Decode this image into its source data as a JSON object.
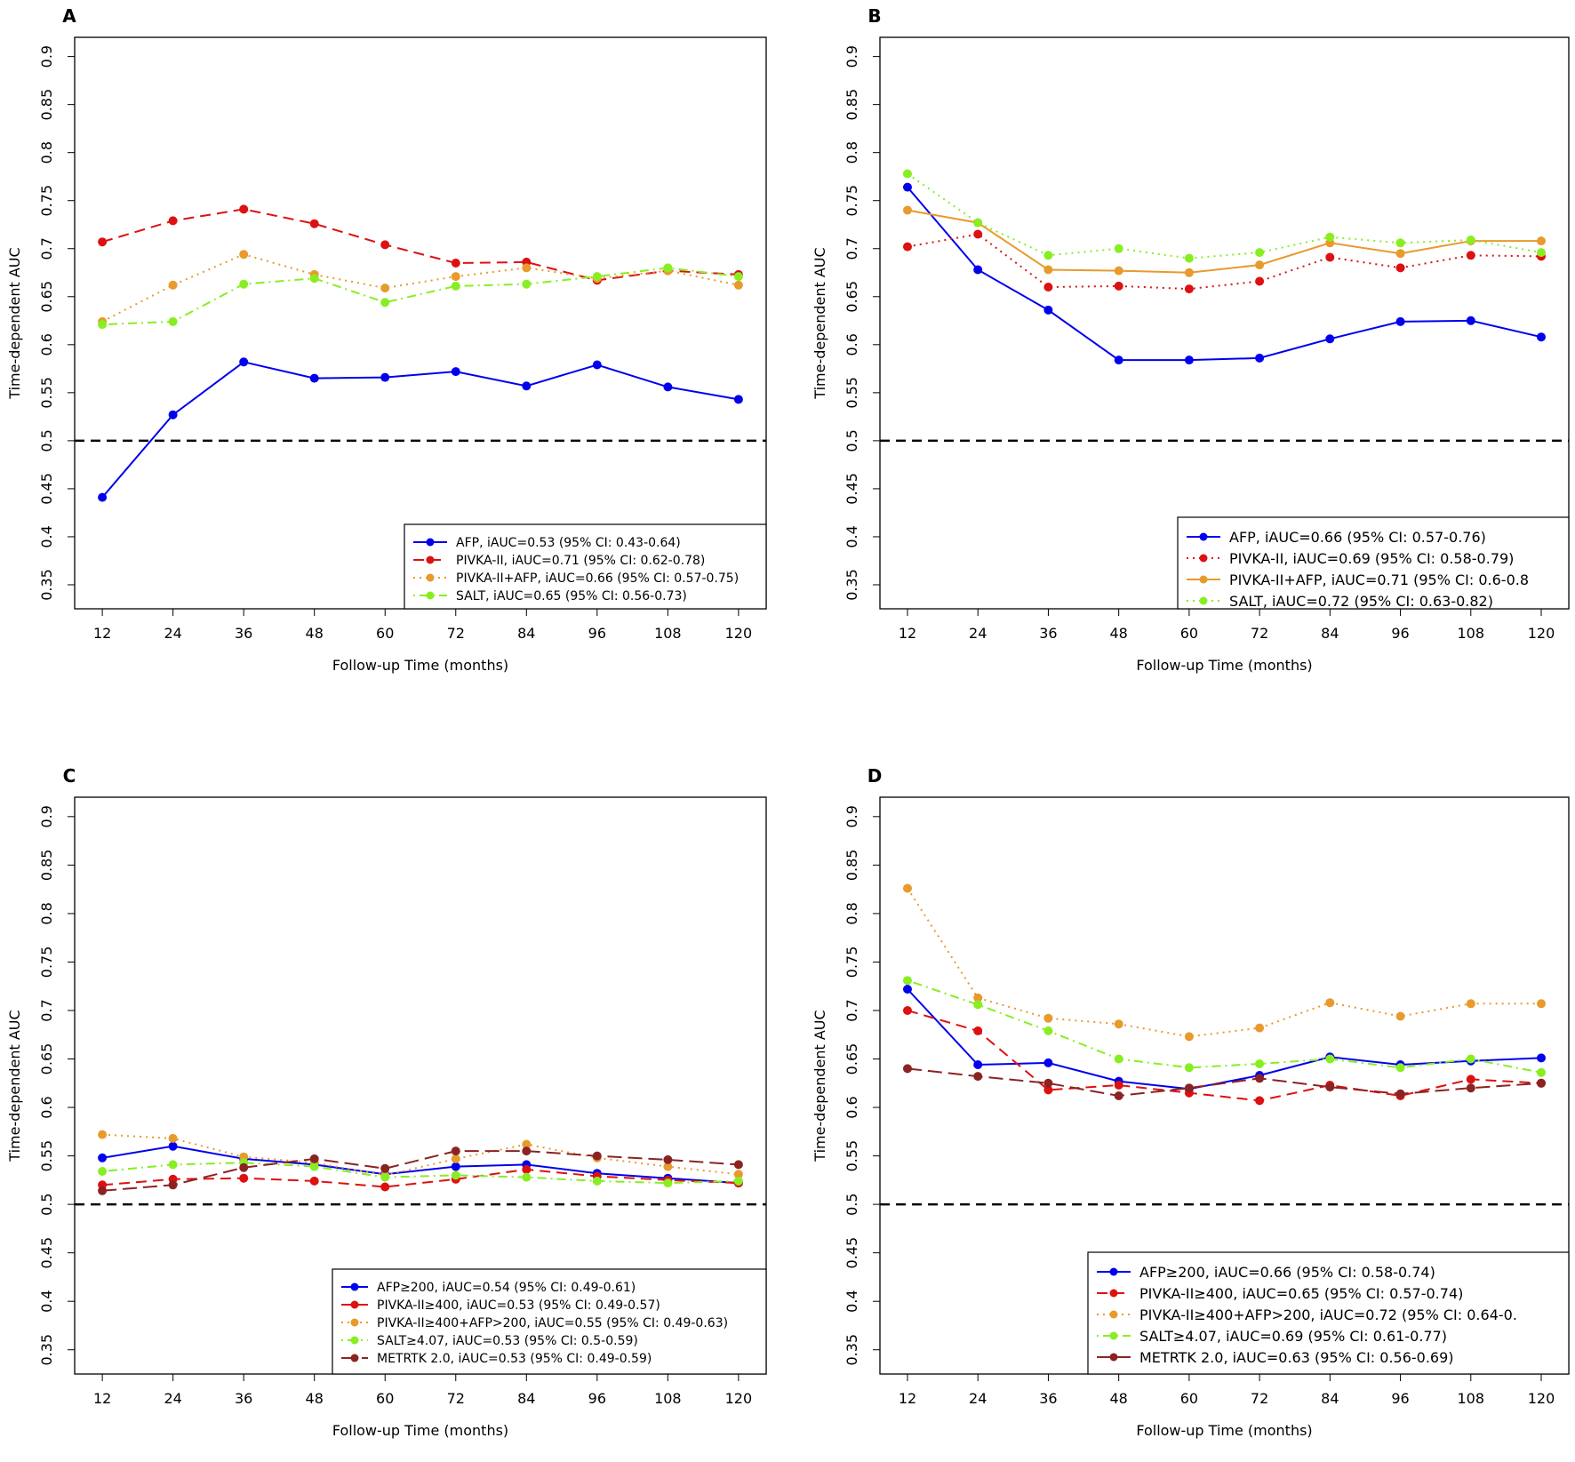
{
  "chart_data": [
    {
      "panel": "A",
      "type": "line",
      "title": "",
      "xlabel": "Follow-up Time (months)",
      "ylabel": "Time-dependent AUC",
      "x": [
        12,
        24,
        36,
        48,
        60,
        72,
        84,
        96,
        108,
        120
      ],
      "x_tick_labels": [
        "12",
        "24",
        "36",
        "48",
        "60",
        "72",
        "84",
        "96",
        "108",
        "120"
      ],
      "ylim": [
        0.325,
        0.92
      ],
      "y_ticks": [
        0.35,
        0.4,
        0.45,
        0.5,
        0.55,
        0.6,
        0.65,
        0.7,
        0.75,
        0.8,
        0.85,
        0.9
      ],
      "y_tick_labels": [
        "0.35",
        "0.4",
        "0.45",
        "0.5",
        "0.55",
        "0.6",
        "0.65",
        "0.7",
        "0.75",
        "0.8",
        "0.85",
        "0.9"
      ],
      "reference_line": 0.5,
      "legend_position": "bottom-right",
      "series": [
        {
          "name": "AFP, iAUC=0.53 (95% CI: 0.43-0.64)",
          "color": "#0000ee",
          "dash": "solid",
          "values": [
            0.441,
            0.527,
            0.582,
            0.565,
            0.566,
            0.572,
            0.557,
            0.579,
            0.556,
            0.543
          ]
        },
        {
          "name": "PIVKA-II, iAUC=0.71 (95% CI: 0.62-0.78)",
          "color": "#dd1111",
          "dash": "dashed",
          "values": [
            0.707,
            0.729,
            0.741,
            0.726,
            0.704,
            0.685,
            0.686,
            0.667,
            0.677,
            0.673
          ]
        },
        {
          "name": "PIVKA-II+AFP, iAUC=0.66 (95% CI: 0.57-0.75)",
          "color": "#e89a2c",
          "dash": "dotted",
          "values": [
            0.624,
            0.662,
            0.694,
            0.673,
            0.659,
            0.671,
            0.68,
            0.669,
            0.677,
            0.662
          ]
        },
        {
          "name": "SALT, iAUC=0.65 (95% CI: 0.56-0.73)",
          "color": "#88ee22",
          "dash": "dotdash",
          "values": [
            0.621,
            0.624,
            0.663,
            0.669,
            0.644,
            0.661,
            0.663,
            0.671,
            0.68,
            0.671
          ]
        }
      ]
    },
    {
      "panel": "B",
      "type": "line",
      "title": "",
      "xlabel": "Follow-up Time (months)",
      "ylabel": "Time-dependent AUC",
      "x": [
        12,
        24,
        36,
        48,
        60,
        72,
        84,
        96,
        108,
        120
      ],
      "x_tick_labels": [
        "12",
        "24",
        "36",
        "48",
        "60",
        "72",
        "84",
        "96",
        "108",
        "120"
      ],
      "ylim": [
        0.325,
        0.92
      ],
      "y_ticks": [
        0.35,
        0.4,
        0.45,
        0.5,
        0.55,
        0.6,
        0.65,
        0.7,
        0.75,
        0.8,
        0.85,
        0.9
      ],
      "y_tick_labels": [
        "0.35",
        "0.4",
        "0.45",
        "0.5",
        "0.55",
        "0.6",
        "0.65",
        "0.7",
        "0.75",
        "0.8",
        "0.85",
        "0.9"
      ],
      "reference_line": 0.5,
      "legend_position": "bottom-right",
      "series": [
        {
          "name": "AFP, iAUC=0.66 (95% CI: 0.57-0.76)",
          "color": "#0000ee",
          "dash": "solid",
          "values": [
            0.764,
            0.678,
            0.636,
            0.584,
            0.584,
            0.586,
            0.606,
            0.624,
            0.625,
            0.608
          ]
        },
        {
          "name": "PIVKA-II, iAUC=0.69 (95% CI: 0.58-0.79)",
          "color": "#dd1111",
          "dash": "dotted",
          "values": [
            0.702,
            0.715,
            0.66,
            0.661,
            0.658,
            0.666,
            0.691,
            0.68,
            0.693,
            0.692
          ]
        },
        {
          "name": "PIVKA-II+AFP, iAUC=0.71 (95% CI: 0.6-0.8",
          "color": "#e89a2c",
          "dash": "solid",
          "values": [
            0.74,
            0.727,
            0.678,
            0.677,
            0.675,
            0.683,
            0.706,
            0.695,
            0.708,
            0.708
          ]
        },
        {
          "name": "SALT, iAUC=0.72 (95% CI: 0.63-0.82)",
          "color": "#88ee22",
          "dash": "dotted",
          "values": [
            0.778,
            0.727,
            0.693,
            0.7,
            0.69,
            0.696,
            0.712,
            0.706,
            0.709,
            0.696
          ]
        }
      ]
    },
    {
      "panel": "C",
      "type": "line",
      "title": "",
      "xlabel": "Follow-up Time (months)",
      "ylabel": "Time-dependent AUC",
      "x": [
        12,
        24,
        36,
        48,
        60,
        72,
        84,
        96,
        108,
        120
      ],
      "x_tick_labels": [
        "12",
        "24",
        "36",
        "48",
        "60",
        "72",
        "84",
        "96",
        "108",
        "120"
      ],
      "ylim": [
        0.325,
        0.92
      ],
      "y_ticks": [
        0.35,
        0.4,
        0.45,
        0.5,
        0.55,
        0.6,
        0.65,
        0.7,
        0.75,
        0.8,
        0.85,
        0.9
      ],
      "y_tick_labels": [
        "0.35",
        "0.4",
        "0.45",
        "0.5",
        "0.55",
        "0.6",
        "0.65",
        "0.7",
        "0.75",
        "0.8",
        "0.85",
        "0.9"
      ],
      "reference_line": 0.5,
      "legend_position": "bottom-right",
      "series": [
        {
          "name": "AFP≥200, iAUC=0.54 (95% CI: 0.49-0.61)",
          "color": "#0000ee",
          "dash": "solid",
          "values": [
            0.548,
            0.56,
            0.547,
            0.541,
            0.531,
            0.539,
            0.541,
            0.532,
            0.527,
            0.522
          ]
        },
        {
          "name": "PIVKA-II≥400, iAUC=0.53 (95% CI: 0.49-0.57)",
          "color": "#dd1111",
          "dash": "dashed",
          "values": [
            0.52,
            0.526,
            0.527,
            0.524,
            0.518,
            0.526,
            0.536,
            0.529,
            0.525,
            0.522
          ]
        },
        {
          "name": "PIVKA-II≥400+AFP>200, iAUC=0.55 (95% CI: 0.49-0.63)",
          "color": "#e89a2c",
          "dash": "dotted",
          "values": [
            0.572,
            0.568,
            0.549,
            0.543,
            0.53,
            0.547,
            0.562,
            0.548,
            0.539,
            0.531
          ]
        },
        {
          "name": "SALT≥4.07, iAUC=0.53 (95% CI: 0.5-0.59)",
          "color": "#88ee22",
          "dash": "dotdash",
          "values": [
            0.534,
            0.541,
            0.543,
            0.539,
            0.528,
            0.53,
            0.528,
            0.524,
            0.522,
            0.524
          ]
        },
        {
          "name": "METRTK 2.0, iAUC=0.53 (95% CI: 0.49-0.59)",
          "color": "#8b2323",
          "dash": "longdash",
          "values": [
            0.514,
            0.52,
            0.538,
            0.547,
            0.537,
            0.555,
            0.555,
            0.55,
            0.546,
            0.541
          ]
        }
      ]
    },
    {
      "panel": "D",
      "type": "line",
      "title": "",
      "xlabel": "Follow-up Time (months)",
      "ylabel": "Time-dependent AUC",
      "x": [
        12,
        24,
        36,
        48,
        60,
        72,
        84,
        96,
        108,
        120
      ],
      "x_tick_labels": [
        "12",
        "24",
        "36",
        "48",
        "60",
        "72",
        "84",
        "96",
        "108",
        "120"
      ],
      "ylim": [
        0.325,
        0.92
      ],
      "y_ticks": [
        0.35,
        0.4,
        0.45,
        0.5,
        0.55,
        0.6,
        0.65,
        0.7,
        0.75,
        0.8,
        0.85,
        0.9
      ],
      "y_tick_labels": [
        "0.35",
        "0.4",
        "0.45",
        "0.5",
        "0.55",
        "0.6",
        "0.65",
        "0.7",
        "0.75",
        "0.8",
        "0.85",
        "0.9"
      ],
      "reference_line": 0.5,
      "legend_position": "bottom-right",
      "series": [
        {
          "name": "AFP≥200, iAUC=0.66 (95% CI: 0.58-0.74)",
          "color": "#0000ee",
          "dash": "solid",
          "values": [
            0.722,
            0.644,
            0.646,
            0.627,
            0.619,
            0.633,
            0.652,
            0.644,
            0.648,
            0.651
          ]
        },
        {
          "name": "PIVKA-II≥400, iAUC=0.65 (95% CI: 0.57-0.74)",
          "color": "#dd1111",
          "dash": "dashed",
          "values": [
            0.7,
            0.679,
            0.618,
            0.623,
            0.615,
            0.607,
            0.623,
            0.612,
            0.629,
            0.625
          ]
        },
        {
          "name": "PIVKA-II≥400+AFP>200, iAUC=0.72 (95% CI: 0.64-0.",
          "color": "#e89a2c",
          "dash": "dotted",
          "values": [
            0.826,
            0.713,
            0.692,
            0.686,
            0.673,
            0.682,
            0.708,
            0.694,
            0.707,
            0.707
          ]
        },
        {
          "name": "SALT≥4.07, iAUC=0.69 (95% CI: 0.61-0.77)",
          "color": "#88ee22",
          "dash": "dotdash",
          "values": [
            0.731,
            0.706,
            0.679,
            0.65,
            0.641,
            0.645,
            0.65,
            0.641,
            0.65,
            0.636
          ]
        },
        {
          "name": "METRTK 2.0, iAUC=0.63 (95% CI: 0.56-0.69)",
          "color": "#8b2323",
          "dash": "longdash",
          "values": [
            0.64,
            0.632,
            0.625,
            0.612,
            0.62,
            0.63,
            0.621,
            0.614,
            0.62,
            0.625
          ]
        }
      ]
    }
  ]
}
